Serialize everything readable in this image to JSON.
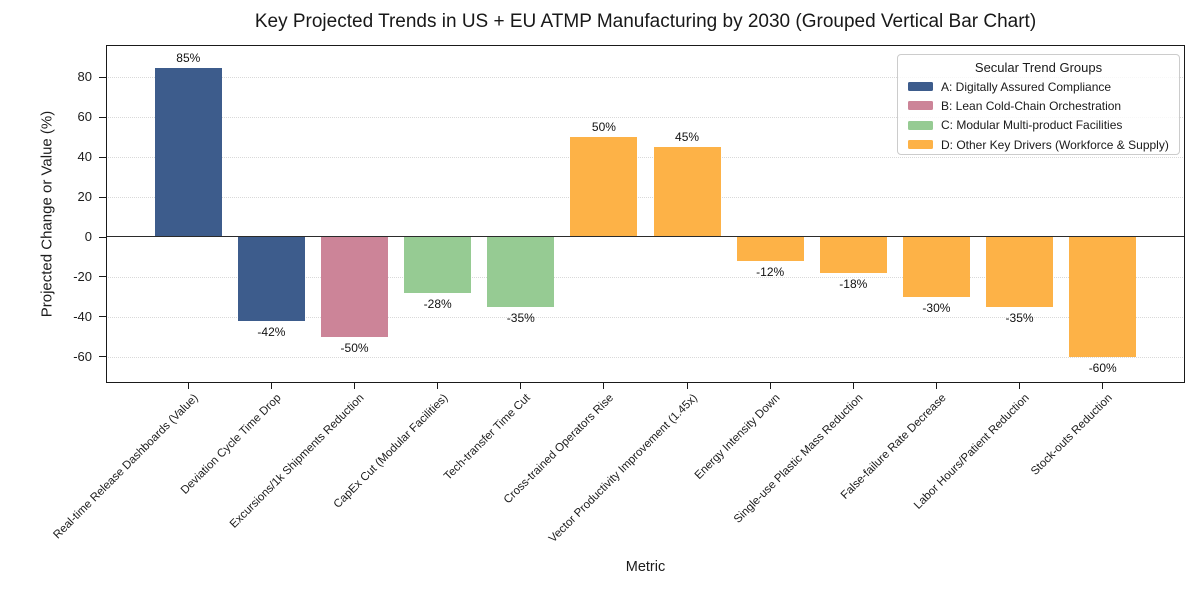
{
  "chart_data": {
    "type": "bar",
    "title": "Key Projected Trends in US + EU ATMP Manufacturing by 2030 (Grouped Vertical Bar Chart)",
    "xlabel": "Metric",
    "ylabel": "Projected Change or Value (%)",
    "ylim": [
      -73,
      96
    ],
    "yticks": [
      80,
      60,
      40,
      20,
      0,
      -20,
      -40,
      -60
    ],
    "grid": "horizontal-dotted",
    "legend_position": "upper-right",
    "categories": [
      "Real-time Release Dashboards (Value)",
      "Deviation Cycle Time Drop",
      "Excursions/1k Shipments Reduction",
      "CapEx Cut (Modular Facilities)",
      "Tech-transfer Time Cut",
      "Cross-trained Operators Rise",
      "Vector Productivity Improvement (1.45x)",
      "Energy Intensity Down",
      "Single-use Plastic Mass Reduction",
      "False-failure Rate Decrease",
      "Labor Hours/Patient Reduction",
      "Stock-outs Reduction"
    ],
    "values": [
      85,
      -42,
      -50,
      -28,
      -35,
      50,
      45,
      -12,
      -18,
      -30,
      -35,
      -60
    ],
    "bar_labels": [
      "85%",
      "-42%",
      "-50%",
      "-28%",
      "-35%",
      "50%",
      "45%",
      "-12%",
      "-18%",
      "-30%",
      "-35%",
      "-60%"
    ],
    "groups": [
      "A",
      "A",
      "B",
      "C",
      "C",
      "D",
      "D",
      "D",
      "D",
      "D",
      "D",
      "D"
    ],
    "group_colors": {
      "A": "#3D5C8C",
      "B": "#CC8498",
      "C": "#96CB93",
      "D": "#FDB247"
    }
  },
  "legend": {
    "title": "Secular Trend Groups",
    "entries": [
      {
        "label": "A: Digitally Assured Compliance",
        "color": "#3D5C8C"
      },
      {
        "label": "B: Lean Cold-Chain Orchestration",
        "color": "#CC8498"
      },
      {
        "label": "C: Modular Multi-product Facilities",
        "color": "#96CB93"
      },
      {
        "label": "D: Other Key Drivers (Workforce & Supply)",
        "color": "#FDB247"
      }
    ]
  },
  "colors": {
    "axis": "#1a1a1a",
    "grid": "#d9d9d9",
    "zero_line": "#2b2b2b",
    "background": "#ffffff"
  }
}
